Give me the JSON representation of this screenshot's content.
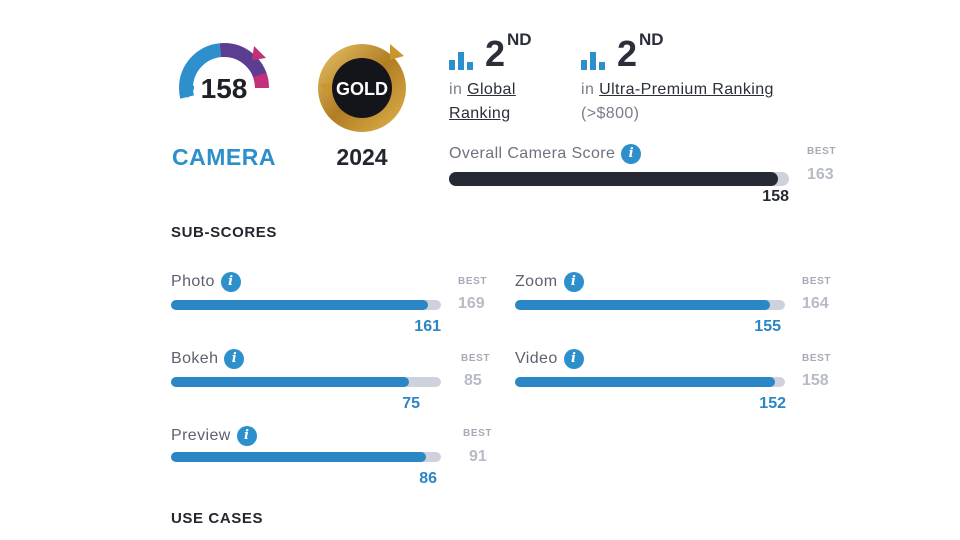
{
  "badges": {
    "camera_score": "158",
    "camera_label": "CAMERA",
    "gold_label": "GOLD",
    "gold_year": "2024",
    "colors": {
      "blue": "#2d8fcb",
      "orange": "#f39a2c",
      "magenta": "#c2307a",
      "purple": "#5b3e91",
      "gold": "#c9962d"
    }
  },
  "rankings": [
    {
      "icon": "bar-chart-icon",
      "rank": "2",
      "suffix": "ND",
      "prefix": "in",
      "link_line1": "Global",
      "link_line2": "Ranking",
      "note": ""
    },
    {
      "icon": "bar-chart-icon",
      "rank": "2",
      "suffix": "ND",
      "prefix": "in",
      "link_line1": "Ultra-Premium Ranking",
      "link_line2": "",
      "note": "(>$800)"
    }
  ],
  "overall": {
    "label": "Overall Camera Score",
    "score": "158",
    "best_label": "BEST",
    "best": "163",
    "fill_ratio": 0.969
  },
  "sections": {
    "sub_scores": "SUB-SCORES",
    "use_cases": "USE CASES"
  },
  "sub_scores": [
    {
      "name": "Photo",
      "score": "161",
      "best_label": "BEST",
      "best": "169",
      "fill_ratio": 0.953
    },
    {
      "name": "Zoom",
      "score": "155",
      "best_label": "BEST",
      "best": "164",
      "fill_ratio": 0.945
    },
    {
      "name": "Bokeh",
      "score": "75",
      "best_label": "BEST",
      "best": "85",
      "fill_ratio": 0.882
    },
    {
      "name": "Video",
      "score": "152",
      "best_label": "BEST",
      "best": "158",
      "fill_ratio": 0.962
    },
    {
      "name": "Preview",
      "score": "86",
      "best_label": "BEST",
      "best": "91",
      "fill_ratio": 0.945
    }
  ],
  "info_glyph": "i"
}
